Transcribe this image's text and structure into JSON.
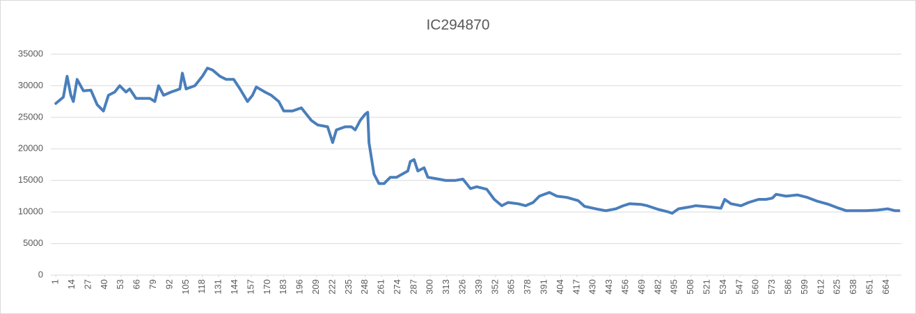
{
  "chart_data": {
    "type": "line",
    "title": "IC294870",
    "x": [
      1,
      7,
      10,
      13,
      15,
      18,
      23,
      29,
      34,
      39,
      43,
      48,
      52,
      57,
      60,
      65,
      76,
      80,
      83,
      87,
      93,
      100,
      102,
      105,
      112,
      118,
      122,
      126,
      132,
      137,
      143,
      148,
      154,
      158,
      161,
      168,
      173,
      179,
      183,
      190,
      197,
      201,
      205,
      210,
      218,
      222,
      225,
      232,
      237,
      240,
      244,
      248,
      250,
      251,
      255,
      259,
      263,
      268,
      273,
      282,
      284,
      287,
      290,
      295,
      298,
      304,
      312,
      320,
      326,
      332,
      337,
      345,
      351,
      357,
      362,
      370,
      376,
      382,
      387,
      395,
      401,
      409,
      418,
      423,
      432,
      440,
      448,
      454,
      459,
      468,
      473,
      482,
      490,
      493,
      498,
      507,
      512,
      523,
      532,
      535,
      540,
      548,
      554,
      562,
      568,
      573,
      576,
      584,
      593,
      601,
      609,
      618,
      626,
      632,
      640,
      648,
      657,
      665,
      671,
      674
    ],
    "values": [
      27200,
      28200,
      31500,
      28500,
      27500,
      31000,
      29200,
      29300,
      27000,
      26000,
      28500,
      29000,
      30000,
      29000,
      29500,
      28000,
      28000,
      27500,
      30000,
      28500,
      29000,
      29500,
      32000,
      29500,
      30000,
      31500,
      32800,
      32500,
      31500,
      31000,
      31000,
      29500,
      27500,
      28500,
      29800,
      29000,
      28500,
      27500,
      26000,
      26000,
      26500,
      25500,
      24500,
      23800,
      23500,
      21000,
      23000,
      23500,
      23500,
      23000,
      24500,
      25500,
      25800,
      21000,
      16000,
      14500,
      14500,
      15500,
      15500,
      16500,
      18000,
      18300,
      16500,
      17000,
      15500,
      15300,
      15000,
      15000,
      15200,
      13700,
      14000,
      13600,
      12000,
      11000,
      11500,
      11300,
      11000,
      11500,
      12500,
      13100,
      12500,
      12300,
      11800,
      10900,
      10500,
      10200,
      10500,
      11000,
      11300,
      11200,
      11000,
      10400,
      10000,
      9800,
      10500,
      10800,
      11000,
      10800,
      10600,
      12000,
      11300,
      11000,
      11500,
      12000,
      12000,
      12200,
      12800,
      12500,
      12700,
      12300,
      11700,
      11200,
      10600,
      10200,
      10200,
      10200,
      10300,
      10500,
      10200,
      10200
    ],
    "color": "#4a7ebb",
    "xlim": [
      -3,
      676
    ],
    "xticks": [
      1,
      14,
      27,
      40,
      53,
      66,
      79,
      92,
      105,
      118,
      131,
      144,
      157,
      170,
      183,
      196,
      209,
      222,
      235,
      248,
      261,
      274,
      287,
      300,
      313,
      326,
      339,
      352,
      365,
      378,
      391,
      404,
      417,
      430,
      443,
      456,
      469,
      482,
      495,
      508,
      521,
      534,
      547,
      560,
      573,
      586,
      599,
      612,
      625,
      638,
      651,
      664
    ],
    "ylim": [
      0,
      35000
    ],
    "yticks": [
      0,
      5000,
      10000,
      15000,
      20000,
      25000,
      30000,
      35000
    ],
    "grid": true
  }
}
